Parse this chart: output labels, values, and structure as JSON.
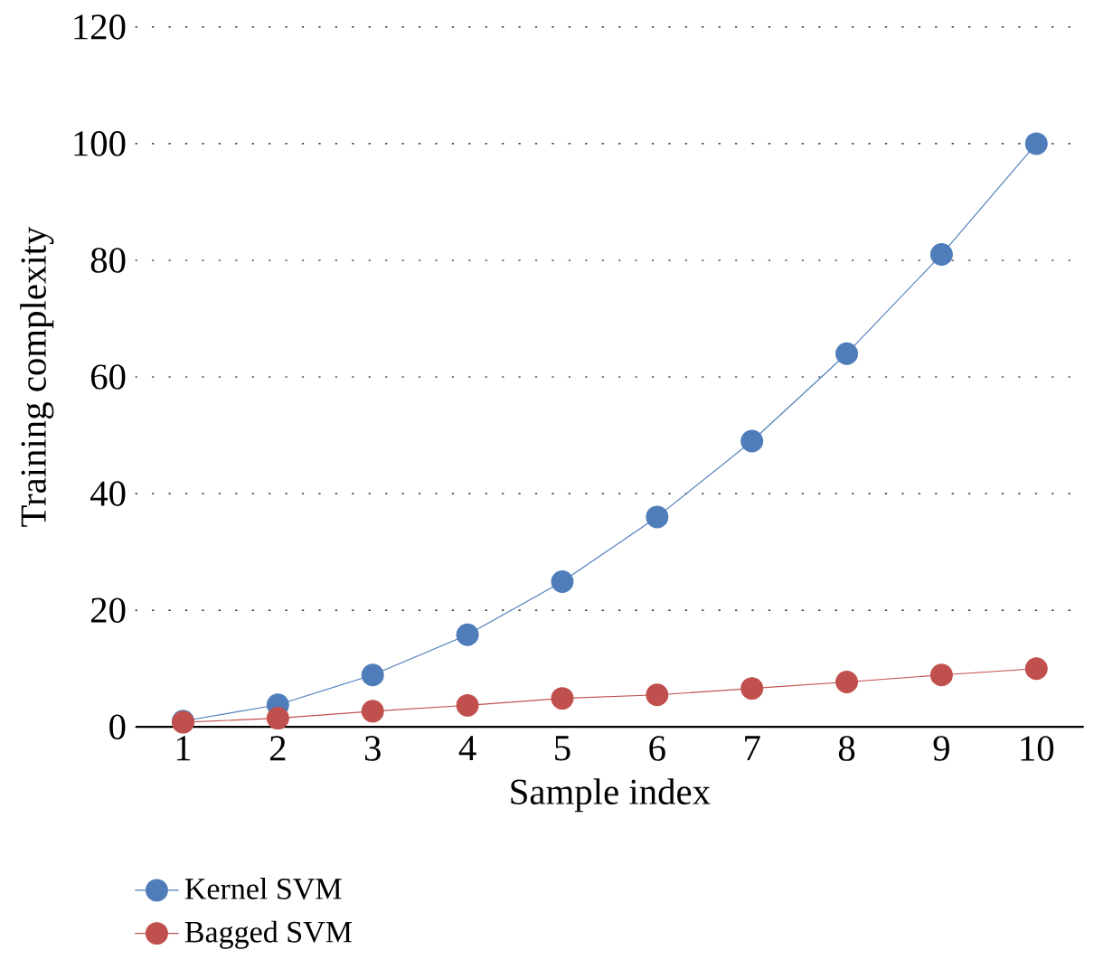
{
  "chart_data": {
    "type": "line",
    "xlabel": "Sample index",
    "ylabel": "Training complexity",
    "categories": [
      "1",
      "2",
      "3",
      "4",
      "5",
      "6",
      "7",
      "8",
      "9",
      "10"
    ],
    "series": [
      {
        "name": "Kernel SVM",
        "color": "#4f7dba",
        "values": [
          1,
          3.8,
          8.9,
          15.8,
          24.9,
          36,
          49,
          64,
          81,
          100
        ]
      },
      {
        "name": "Bagged SVM",
        "color": "#c0504d",
        "values": [
          0.8,
          1.5,
          2.7,
          3.7,
          4.9,
          5.5,
          6.6,
          7.7,
          8.9,
          10
        ]
      }
    ],
    "ylim": [
      0,
      120
    ],
    "yticks": [
      0,
      20,
      40,
      60,
      80,
      100,
      120
    ],
    "grid": "y",
    "legend": "bottom left",
    "marker": "circle",
    "line_style": "solid"
  }
}
